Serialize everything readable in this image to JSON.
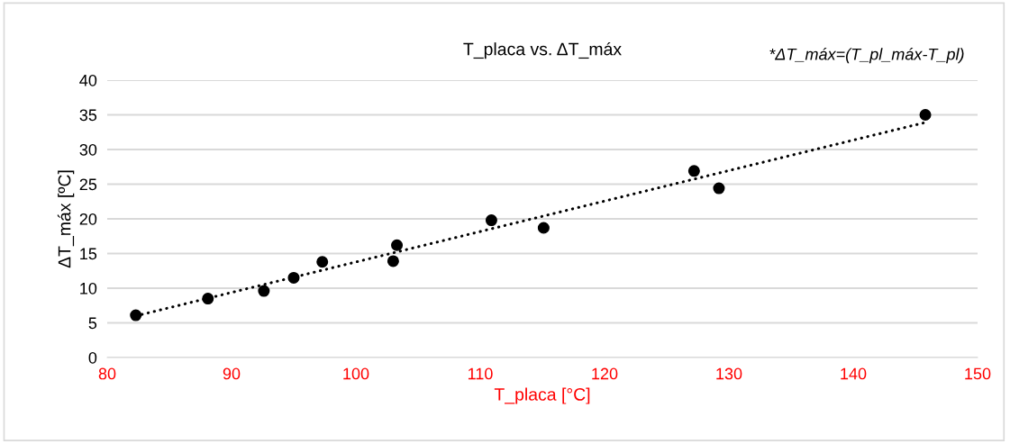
{
  "chart_data": {
    "type": "scatter",
    "title": "T_placa vs. ΔT_máx",
    "xlabel": "T_placa [°C]",
    "ylabel": "ΔT_máx [ºC]",
    "annotations": [
      "*ΔT_máx=(T_pl_máx-T_pl)"
    ],
    "xlim": [
      80,
      150
    ],
    "xticks": [
      80,
      90,
      100,
      110,
      120,
      130,
      140,
      150
    ],
    "ylim": [
      0,
      40
    ],
    "yticks": [
      0,
      5,
      10,
      15,
      20,
      25,
      30,
      35,
      40
    ],
    "grid": "y",
    "legend": false,
    "series": [
      {
        "color": "#000000",
        "marker": "circle",
        "x": [
          82.3,
          88.1,
          92.6,
          95.0,
          97.3,
          103.0,
          103.3,
          110.9,
          115.1,
          127.2,
          129.2,
          145.8
        ],
        "values": [
          6.1,
          8.5,
          9.6,
          11.5,
          13.8,
          13.9,
          16.2,
          19.8,
          18.7,
          26.9,
          24.4,
          35.0
        ]
      },
      {
        "type": "line",
        "color": "#000000",
        "line_style": "dotted",
        "marker": "none",
        "x": [
          82.3,
          145.8
        ],
        "values": [
          6.0,
          33.9
        ]
      }
    ]
  }
}
